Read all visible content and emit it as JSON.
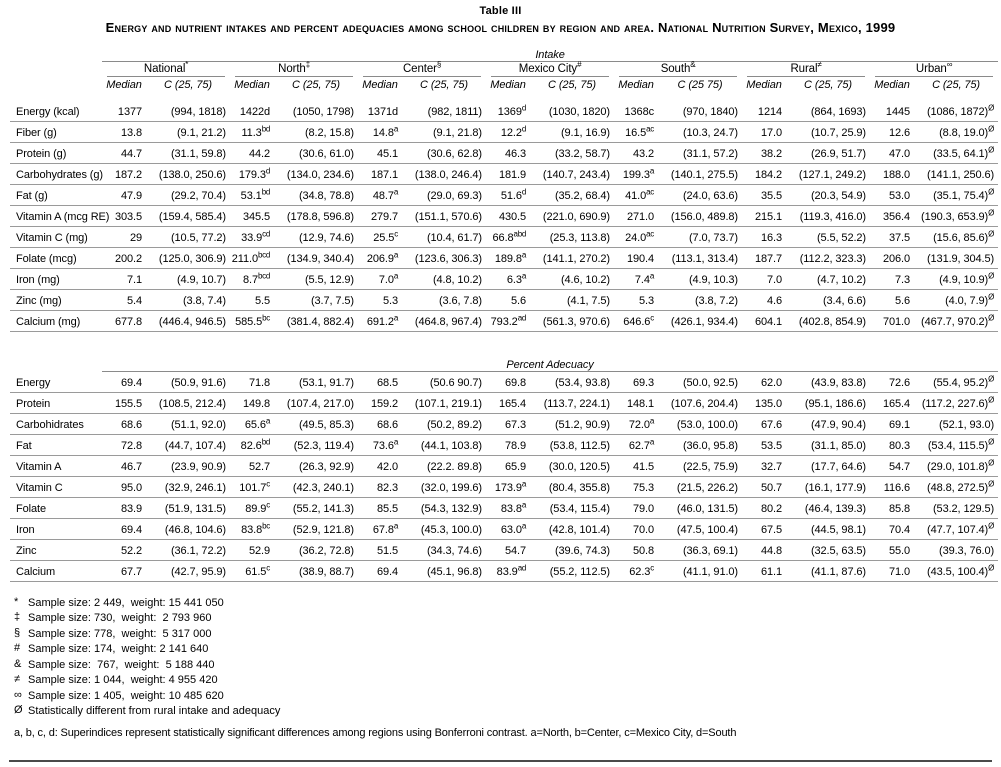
{
  "title": "Table III",
  "subtitle": "Energy and nutrient intakes and percent adequacies among school children by region and area. National Nutrition Survey, Mexico, 1999",
  "table": {
    "intake_label": "Intake",
    "adequacy_label": "Percent Adecuacy",
    "median_label": "Median",
    "regions": [
      {
        "name": "National^{*}",
        "c": "C (25, 75)"
      },
      {
        "name": "North^{‡}",
        "c": "C (25, 75)"
      },
      {
        "name": "Center^{§}",
        "c": "C (25, 75)"
      },
      {
        "name": "Mexico City^{#}",
        "c": "C (25, 75)"
      },
      {
        "name": "South^{&}",
        "c": "C (25 75)"
      },
      {
        "name": "Rural^{≠}",
        "c": "C (25, 75)"
      },
      {
        "name": "Urban^{∞}",
        "c": "C (25, 75)"
      }
    ],
    "intake_rows": [
      {
        "label": "Energy (kcal)",
        "cells": [
          "1377",
          "(994, 1818)",
          "1422d",
          "(1050, 1798)",
          "1371d",
          "(982, 1811)",
          "1369^{d}",
          "(1030, 1820)",
          "1368c",
          "(970, 1840)",
          "1214",
          "(864, 1693)",
          "1445",
          "(1086, 1872)^{Ø}"
        ]
      },
      {
        "label": "Fiber (g)",
        "cells": [
          "13.8",
          "(9.1, 21.2)",
          "11.3^{bd}",
          "(8.2, 15.8)",
          "14.8^{a}",
          "(9.1, 21.8)",
          "12.2^{d}",
          "(9.1, 16.9)",
          "16.5^{ac}",
          "(10.3, 24.7)",
          "17.0",
          "(10.7, 25.9)",
          "12.6",
          "(8.8, 19.0)^{Ø}"
        ]
      },
      {
        "label": "Protein (g)",
        "cells": [
          "44.7",
          "(31.1, 59.8)",
          "44.2",
          "(30.6, 61.0)",
          "45.1",
          "(30.6, 62.8)",
          "46.3",
          "(33.2, 58.7)",
          "43.2",
          "(31.1, 57.2)",
          "38.2",
          "(26.9, 51.7)",
          "47.0",
          "(33.5, 64.1)^{Ø}"
        ]
      },
      {
        "label": "Carbohydrates (g)",
        "cells": [
          "187.2",
          "(138.0, 250.6)",
          "179.3^{d}",
          "(134.0, 234.6)",
          "187.1",
          "(138.0, 246.4)",
          "181.9",
          "(140.7, 243.4)",
          "199.3^{a}",
          "(140.1, 275.5)",
          "184.2",
          "(127.1, 249.2)",
          "188.0",
          "(141.1, 250.6)"
        ]
      },
      {
        "label": "Fat (g)",
        "cells": [
          "47.9",
          "(29.2, 70.4)",
          "53.1^{bd}",
          "(34.8, 78.8)",
          "48.7^{a}",
          "(29.0, 69.3)",
          "51.6^{d}",
          "(35.2, 68.4)",
          "41.0^{ac}",
          "(24.0, 63.6)",
          "35.5",
          "(20.3, 54.9)",
          "53.0",
          "(35.1, 75.4)^{Ø}"
        ]
      },
      {
        "label": "Vitamin A (mcg RE)",
        "cells": [
          "303.5",
          "(159.4, 585.4)",
          "345.5",
          "(178.8, 596.8)",
          "279.7",
          "(151.1, 570.6)",
          "430.5",
          "(221.0, 690.9)",
          "271.0",
          "(156.0, 489.8)",
          "215.1",
          "(119.3, 416.0)",
          "356.4",
          "(190.3, 653.9)^{Ø}"
        ]
      },
      {
        "label": "Vitamin C (mg)",
        "cells": [
          "29",
          "(10.5, 77.2)",
          "33.9^{cd}",
          "(12.9, 74.6)",
          "25.5^{c}",
          "(10.4, 61.7)",
          "66.8^{abd}",
          "(25.3, 113.8)",
          "24.0^{ac}",
          "(7.0, 73.7)",
          "16.3",
          "(5.5, 52.2)",
          "37.5",
          "(15.6, 85.6)^{Ø}"
        ]
      },
      {
        "label": "Folate (mcg)",
        "cells": [
          "200.2",
          "(125.0, 306.9)",
          "211.0^{bcd}",
          "(134.9, 340.4)",
          "206.9^{a}",
          "(123.6, 306.3)",
          "189.8^{a}",
          "(141.1, 270.2)",
          "190.4",
          "(113.1, 313.4)",
          "187.7",
          "(112.2, 323.3)",
          "206.0",
          "(131.9, 304.5)"
        ]
      },
      {
        "label": "Iron (mg)",
        "cells": [
          "7.1",
          "(4.9, 10.7)",
          "8.7^{bcd}",
          "(5.5, 12.9)",
          "7.0^{a}",
          "(4.8, 10.2)",
          "6.3^{a}",
          "(4.6, 10.2)",
          "7.4^{a}",
          "(4.9, 10.3)",
          "7.0",
          "(4.7, 10.2)",
          "7.3",
          "(4.9, 10.9)^{Ø}"
        ]
      },
      {
        "label": "Zinc (mg)",
        "cells": [
          "5.4",
          "(3.8, 7.4)",
          "5.5",
          "(3.7, 7.5)",
          "5.3",
          "(3.6, 7.8)",
          "5.6",
          "(4.1, 7.5)",
          "5.3",
          "(3.8, 7.2)",
          "4.6",
          "(3.4, 6.6)",
          "5.6",
          "(4.0, 7.9)^{Ø}"
        ]
      },
      {
        "label": "Calcium (mg)",
        "cells": [
          "677.8",
          "(446.4, 946.5)",
          "585.5^{bc}",
          "(381.4, 882.4)",
          "691.2^{a}",
          "(464.8, 967.4)",
          "793.2^{ad}",
          "(561.3, 970.6)",
          "646.6^{c}",
          "(426.1, 934.4)",
          "604.1",
          "(402.8, 854.9)",
          "701.0",
          "(467.7, 970.2)^{Ø}"
        ]
      }
    ],
    "adequacy_rows": [
      {
        "label": "Energy",
        "cells": [
          "69.4",
          "(50.9, 91.6)",
          "71.8",
          "(53.1, 91.7)",
          "68.5",
          "(50.6 90.7)",
          "69.8",
          "(53.4, 93.8)",
          "69.3",
          "(50.0, 92.5)",
          "62.0",
          "(43.9, 83.8)",
          "72.6",
          "(55.4, 95.2)^{Ø}"
        ]
      },
      {
        "label": "Protein",
        "cells": [
          "155.5",
          "(108.5, 212.4)",
          "149.8",
          "(107.4, 217.0)",
          "159.2",
          "(107.1, 219.1)",
          "165.4",
          "(113.7, 224.1)",
          "148.1",
          "(107.6, 204.4)",
          "135.0",
          "(95.1, 186.6)",
          "165.4",
          "(117.2, 227.6)^{Ø}"
        ]
      },
      {
        "label": "Carbohidrates",
        "cells": [
          "68.6",
          "(51.1, 92.0)",
          "65.6^{a}",
          "(49.5, 85.3)",
          "68.6",
          "(50.2, 89.2)",
          "67.3",
          "(51.2, 90.9)",
          "72.0^{a}",
          "(53.0, 100.0)",
          "67.6",
          "(47.9, 90.4)",
          "69.1",
          "(52.1, 93.0)"
        ]
      },
      {
        "label": "Fat",
        "cells": [
          "72.8",
          "(44.7, 107.4)",
          "82.6^{bd}",
          "(52.3, 119.4)",
          "73.6^{a}",
          "(44.1, 103.8)",
          "78.9",
          "(53.8, 112.5)",
          "62.7^{a}",
          "(36.0, 95.8)",
          "53.5",
          "(31.1, 85.0)",
          "80.3",
          "(53.4, 115.5)^{Ø}"
        ]
      },
      {
        "label": "Vitamin A",
        "cells": [
          "46.7",
          "(23.9, 90.9)",
          "52.7",
          "(26.3, 92.9)",
          "42.0",
          "(22.2. 89.8)",
          "65.9",
          "(30.0, 120.5)",
          "41.5",
          "(22.5, 75.9)",
          "32.7",
          "(17.7, 64.6)",
          "54.7",
          "(29.0, 101.8)^{Ø}"
        ]
      },
      {
        "label": "Vitamin C",
        "cells": [
          "95.0",
          "(32.9, 246.1)",
          "101.7^{c}",
          "(42.3, 240.1)",
          "82.3",
          "(32.0, 199.6)",
          "173.9^{a}",
          "(80.4, 355.8)",
          "75.3",
          "(21.5, 226.2)",
          "50.7",
          "(16.1, 177.9)",
          "116.6",
          "(48.8, 272.5)^{Ø}"
        ]
      },
      {
        "label": "Folate",
        "cells": [
          "83.9",
          "(51.9, 131.5)",
          "89.9^{c}",
          "(55.2, 141.3)",
          "85.5",
          "(54.3, 132.9)",
          "83.8^{a}",
          "(53.4, 115.4)",
          "79.0",
          "(46.0, 131.5)",
          "80.2",
          "(46.4, 139.3)",
          "85.8",
          "(53.2, 129.5)"
        ]
      },
      {
        "label": "Iron",
        "cells": [
          "69.4",
          "(46.8, 104.6)",
          "83.8^{bc}",
          "(52.9, 121.8)",
          "67.8^{a}",
          "(45.3, 100.0)",
          "63.0^{a}",
          "(42.8, 101.4)",
          "70.0",
          "(47.5, 100.4)",
          "67.5",
          "(44.5, 98.1)",
          "70.4",
          "(47.7, 107.4)^{Ø}"
        ]
      },
      {
        "label": "Zinc",
        "cells": [
          "52.2",
          "(36.1, 72.2)",
          "52.9",
          "(36.2, 72.8)",
          "51.5",
          "(34.3, 74.6)",
          "54.7",
          "(39.6, 74.3)",
          "50.8",
          "(36.3, 69.1)",
          "44.8",
          "(32.5, 63.5)",
          "55.0",
          "(39.3, 76.0)"
        ]
      },
      {
        "label": "Calcium",
        "cells": [
          "67.7",
          "(42.7, 95.9)",
          "61.5^{c}",
          "(38.9, 88.7)",
          "69.4",
          "(45.1, 96.8)",
          "83.9^{ad}",
          "(55.2, 112.5)",
          "62.3^{c}",
          "(41.1, 91.0)",
          "61.1",
          "(41.1, 87.6)",
          "71.0",
          "(43.5, 100.4)^{Ø}"
        ]
      }
    ]
  },
  "footnotes": [
    {
      "mark": "*",
      "text": "Sample size: 2 449,  weight: 15 441 050"
    },
    {
      "mark": "‡",
      "text": "Sample size: 730,  weight:  2 793 960"
    },
    {
      "mark": "§",
      "text": "Sample size: 778,  weight:  5 317 000"
    },
    {
      "mark": "#",
      "text": "Sample size: 174,  weight: 2 141 640"
    },
    {
      "mark": "&",
      "text": "Sample size:  767,  weight:  5 188 440"
    },
    {
      "mark": "≠",
      "text": "Sample size: 1 044,  weight: 4 955 420"
    },
    {
      "mark": "∞",
      "text": "Sample size: 1 405,  weight: 10 485 620"
    },
    {
      "mark": "Ø",
      "text": "Statistically different from rural intake and adequacy"
    }
  ],
  "bonferroni_note": "a, b, c, d: Superindices represent statistically significant differences among regions using Bonferroni contrast. a=North, b=Center, c=Mexico City, d=South"
}
